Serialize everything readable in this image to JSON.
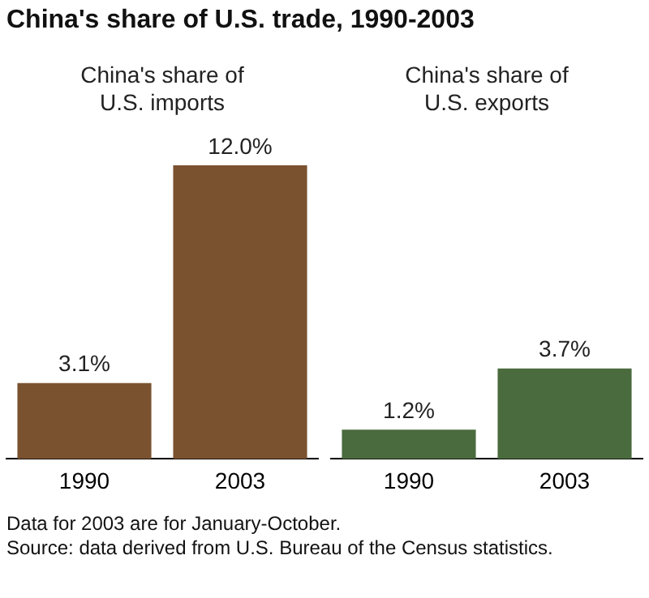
{
  "chart_data": [
    {
      "type": "bar",
      "title": "China's share of U.S. trade, 1990-2003",
      "subtitle": "China's share of\nU.S. imports",
      "categories": [
        "1990",
        "2003"
      ],
      "values": [
        3.1,
        12.0
      ],
      "colors": [
        "#7a5230",
        "#7a5230"
      ],
      "data_labels": true,
      "value_labels": [
        "3.1%",
        "12.0%"
      ],
      "grid": false,
      "legend": false,
      "tick_labels": "x"
    },
    {
      "type": "bar",
      "subtitle": "China's share of\nU.S. exports",
      "categories": [
        "1990",
        "2003"
      ],
      "values": [
        1.2,
        3.7
      ],
      "colors": [
        "#4a6b3e",
        "#4a6b3e"
      ],
      "data_labels": true,
      "value_labels": [
        "1.2%",
        "3.7%"
      ],
      "grid": false,
      "legend": false,
      "tick_labels": "x",
      "annotations": [
        "Data for 2003 are for January-October.",
        "Source: data derived from U.S. Bureau of the Census statistics."
      ]
    }
  ]
}
